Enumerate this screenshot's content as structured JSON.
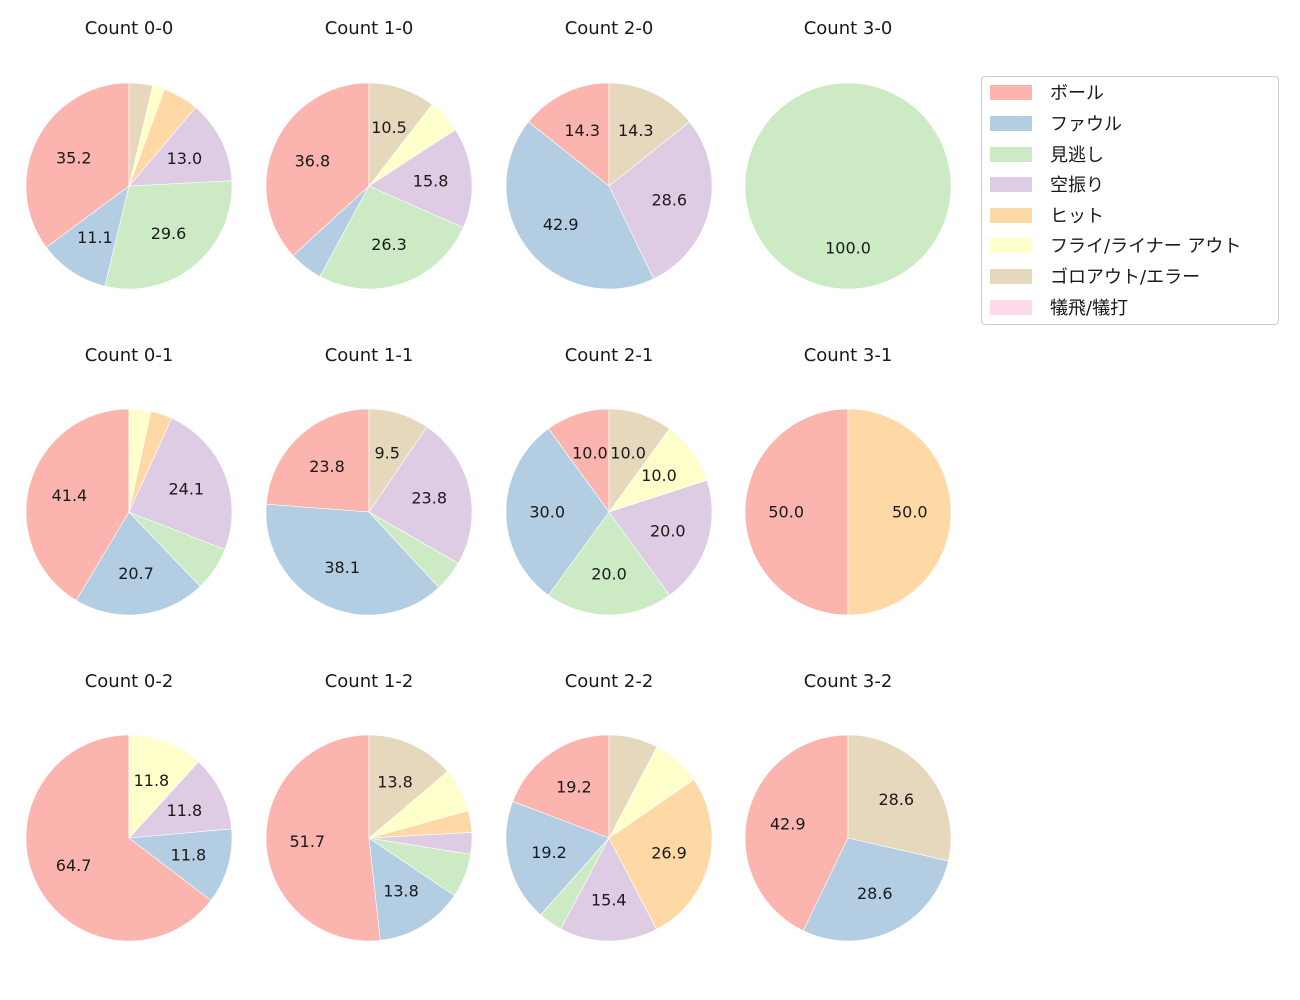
{
  "chart_data": {
    "type": "pie",
    "title": "",
    "start_angle": 90,
    "direction": "counterclockwise",
    "legend": {
      "position": "upper right (outside)",
      "entries": [
        {
          "label": "ボール",
          "color": "#fbb4ae"
        },
        {
          "label": "ファウル",
          "color": "#b3cde3"
        },
        {
          "label": "見逃し",
          "color": "#ccebc5"
        },
        {
          "label": "空振り",
          "color": "#decbe4"
        },
        {
          "label": "ヒット",
          "color": "#fed9a6"
        },
        {
          "label": "フライ/ライナー アウト",
          "color": "#ffffcc"
        },
        {
          "label": "ゴロアウト/エラー",
          "color": "#e5d8bd"
        },
        {
          "label": "犠飛/犠打",
          "color": "#fddaec"
        }
      ]
    },
    "categories": [
      "ボール",
      "ファウル",
      "見逃し",
      "空振り",
      "ヒット",
      "フライ/ライナー アウト",
      "ゴロアウト/エラー",
      "犠飛/犠打"
    ],
    "label_threshold_note": "Only slices labeled in the image show values; small slices are unlabeled",
    "charts": [
      {
        "title": "Count 0-0",
        "values": [
          35.2,
          11.1,
          29.6,
          13.0,
          5.6,
          1.9,
          3.7,
          0
        ],
        "labels_shown": [
          true,
          true,
          true,
          true,
          false,
          false,
          false,
          false
        ]
      },
      {
        "title": "Count 1-0",
        "values": [
          36.8,
          5.3,
          26.3,
          15.8,
          0,
          5.3,
          10.5,
          0
        ],
        "labels_shown": [
          true,
          false,
          true,
          true,
          false,
          false,
          true,
          false
        ]
      },
      {
        "title": "Count 2-0",
        "values": [
          14.3,
          42.9,
          0,
          28.6,
          0,
          0,
          14.3,
          0
        ],
        "labels_shown": [
          true,
          true,
          false,
          true,
          false,
          false,
          true,
          false
        ]
      },
      {
        "title": "Count 3-0",
        "values": [
          0,
          0,
          100.0,
          0,
          0,
          0,
          0,
          0
        ],
        "labels_shown": [
          false,
          false,
          true,
          false,
          false,
          false,
          false,
          false
        ]
      },
      {
        "title": "Count 0-1",
        "values": [
          41.4,
          20.7,
          6.9,
          24.1,
          3.4,
          3.4,
          0,
          0
        ],
        "labels_shown": [
          true,
          true,
          false,
          true,
          false,
          false,
          false,
          false
        ]
      },
      {
        "title": "Count 1-1",
        "values": [
          23.8,
          38.1,
          4.8,
          23.8,
          0,
          0,
          9.5,
          0
        ],
        "labels_shown": [
          true,
          true,
          false,
          true,
          false,
          false,
          true,
          false
        ]
      },
      {
        "title": "Count 2-1",
        "values": [
          10.0,
          30.0,
          20.0,
          20.0,
          0,
          10.0,
          10.0,
          0
        ],
        "labels_shown": [
          true,
          true,
          true,
          true,
          false,
          true,
          true,
          false
        ]
      },
      {
        "title": "Count 3-1",
        "values": [
          50.0,
          0,
          0,
          0,
          50.0,
          0,
          0,
          0
        ],
        "labels_shown": [
          true,
          false,
          false,
          false,
          true,
          false,
          false,
          false
        ]
      },
      {
        "title": "Count 0-2",
        "values": [
          64.7,
          11.8,
          0,
          11.8,
          0,
          11.8,
          0,
          0
        ],
        "labels_shown": [
          true,
          true,
          false,
          true,
          false,
          true,
          false,
          false
        ]
      },
      {
        "title": "Count 1-2",
        "values": [
          51.7,
          13.8,
          6.9,
          3.4,
          3.4,
          6.9,
          13.8,
          0
        ],
        "labels_shown": [
          true,
          true,
          false,
          false,
          false,
          false,
          true,
          false
        ]
      },
      {
        "title": "Count 2-2",
        "values": [
          19.2,
          19.2,
          3.8,
          15.4,
          26.9,
          7.7,
          7.7,
          0
        ],
        "labels_shown": [
          true,
          true,
          false,
          true,
          true,
          false,
          false,
          false
        ]
      },
      {
        "title": "Count 3-2",
        "values": [
          42.9,
          28.6,
          0,
          0,
          0,
          0,
          28.6,
          0
        ],
        "labels_shown": [
          true,
          true,
          false,
          false,
          false,
          false,
          true,
          false
        ]
      }
    ],
    "layout": {
      "rows": 3,
      "cols": 4,
      "order": "row-major: rows are strikes 0,1,2; columns are balls 0,1,2,3"
    }
  }
}
